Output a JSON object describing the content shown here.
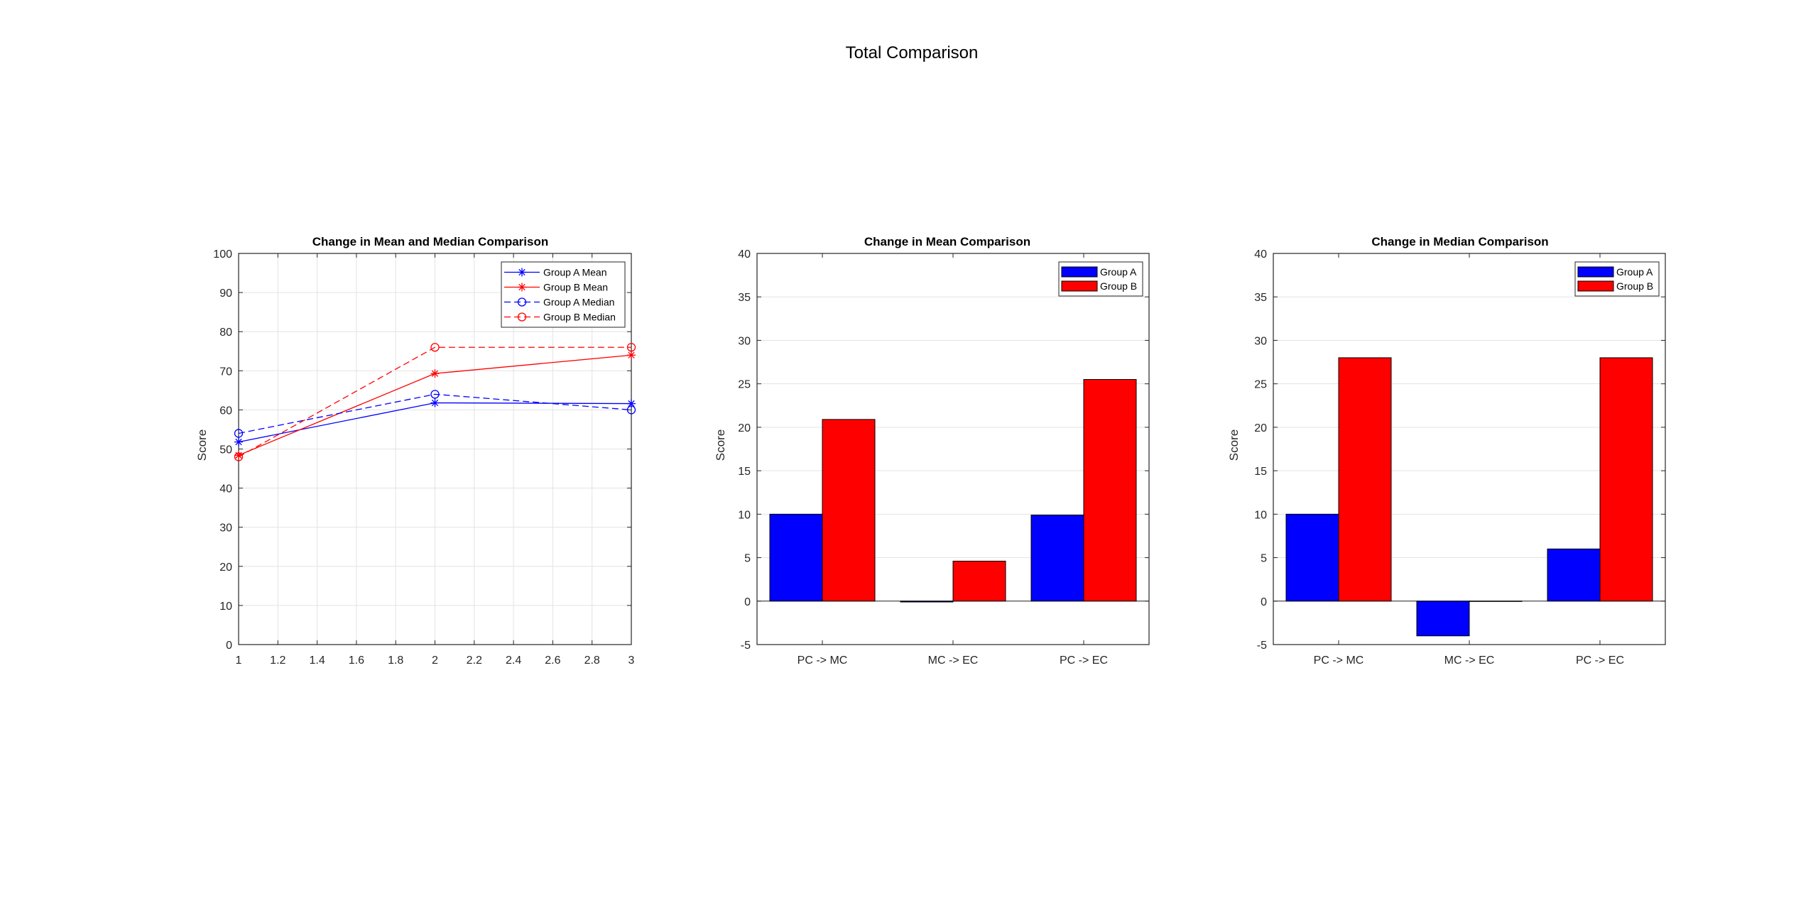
{
  "figure": {
    "title": "Total Comparison"
  },
  "chart_data": [
    {
      "type": "line",
      "title": "Change in Mean and Median Comparison",
      "xlabel": "",
      "ylabel": "Score",
      "xlim": [
        1,
        3
      ],
      "ylim": [
        0,
        100
      ],
      "xticks": [
        1,
        1.2,
        1.4,
        1.6,
        1.8,
        2,
        2.2,
        2.4,
        2.6,
        2.8,
        3
      ],
      "xtick_labels": [
        "1",
        "1.2",
        "1.4",
        "1.6",
        "1.8",
        "2",
        "2.2",
        "2.4",
        "2.6",
        "2.8",
        "3"
      ],
      "yticks": [
        0,
        10,
        20,
        30,
        40,
        50,
        60,
        70,
        80,
        90,
        100
      ],
      "ytick_labels": [
        "0",
        "10",
        "20",
        "30",
        "40",
        "50",
        "60",
        "70",
        "80",
        "90",
        "100"
      ],
      "grid": true,
      "legend_position": "top-right",
      "x": [
        1,
        2,
        3
      ],
      "series": [
        {
          "name": "Group A Mean",
          "values": [
            51.8,
            61.8,
            61.6
          ],
          "color": "#0000ff",
          "line": "solid",
          "marker": "asterisk"
        },
        {
          "name": "Group B Mean",
          "values": [
            48.4,
            69.3,
            74.0
          ],
          "color": "#ff0000",
          "line": "solid",
          "marker": "asterisk"
        },
        {
          "name": "Group A Median",
          "values": [
            54.0,
            64.0,
            60.0
          ],
          "color": "#0000ff",
          "line": "dashed",
          "marker": "circle"
        },
        {
          "name": "Group B Median",
          "values": [
            48.0,
            76.0,
            76.0
          ],
          "color": "#ff0000",
          "line": "dashed",
          "marker": "circle"
        }
      ]
    },
    {
      "type": "bar",
      "title": "Change in Mean Comparison",
      "xlabel": "",
      "ylabel": "Score",
      "ylim": [
        -5,
        40
      ],
      "yticks": [
        -5,
        0,
        5,
        10,
        15,
        20,
        25,
        30,
        35,
        40
      ],
      "ytick_labels": [
        "-5",
        "0",
        "5",
        "10",
        "15",
        "20",
        "25",
        "30",
        "35",
        "40"
      ],
      "grid": true,
      "legend_position": "top-right",
      "categories": [
        "PC -> MC",
        "MC -> EC",
        "PC -> EC"
      ],
      "series": [
        {
          "name": "Group A",
          "values": [
            10.0,
            -0.1,
            9.9
          ],
          "color": "#0000ff"
        },
        {
          "name": "Group B",
          "values": [
            20.9,
            4.6,
            25.5
          ],
          "color": "#ff0000"
        }
      ]
    },
    {
      "type": "bar",
      "title": "Change in Median Comparison",
      "xlabel": "",
      "ylabel": "Score",
      "ylim": [
        -5,
        40
      ],
      "yticks": [
        -5,
        0,
        5,
        10,
        15,
        20,
        25,
        30,
        35,
        40
      ],
      "ytick_labels": [
        "-5",
        "0",
        "5",
        "10",
        "15",
        "20",
        "25",
        "30",
        "35",
        "40"
      ],
      "grid": true,
      "legend_position": "top-right",
      "categories": [
        "PC -> MC",
        "MC -> EC",
        "PC -> EC"
      ],
      "series": [
        {
          "name": "Group A",
          "values": [
            10.0,
            -4.0,
            6.0
          ],
          "color": "#0000ff"
        },
        {
          "name": "Group B",
          "values": [
            28.0,
            0.0,
            28.0
          ],
          "color": "#ff0000"
        }
      ]
    }
  ]
}
